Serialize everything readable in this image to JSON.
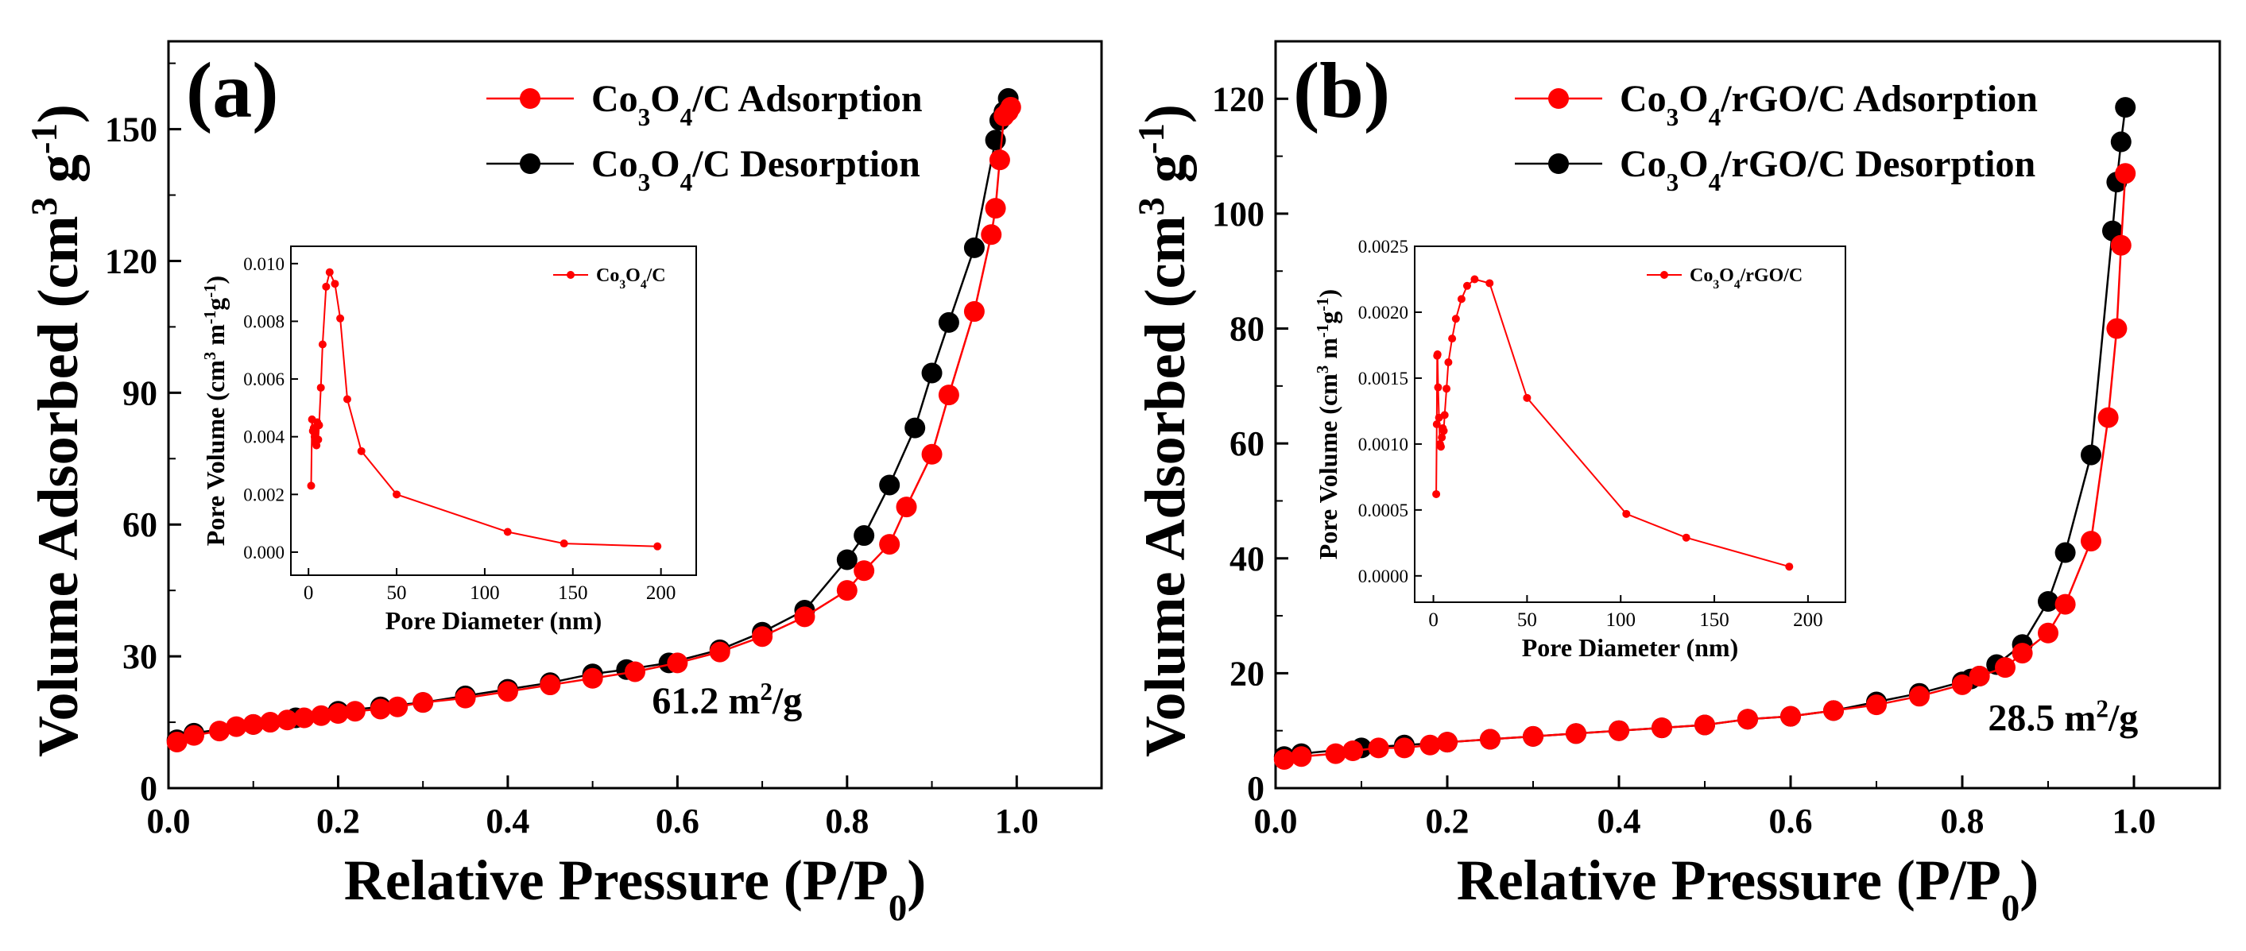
{
  "chart_data": [
    {
      "type": "scatter",
      "panel_label": "(a)",
      "ylabel": "Volume Adsorbed (cm³ g⁻¹)",
      "xlabel": "Relative Pressure (P/P₀)",
      "xlim": [
        0,
        1.1
      ],
      "ylim": [
        0,
        170
      ],
      "xticks": [
        "0.0",
        "0.2",
        "0.4",
        "0.6",
        "0.8",
        "1.0"
      ],
      "xtick_values": [
        0,
        0.2,
        0.4,
        0.6,
        0.8,
        1.0
      ],
      "yticks": [
        "0",
        "30",
        "60",
        "90",
        "120",
        "150"
      ],
      "ytick_values": [
        0,
        30,
        60,
        90,
        120,
        150
      ],
      "annotation": "61.2 m²/g",
      "legend_position": "top-right",
      "series": [
        {
          "name": "Co₃O₄/C Adsorption",
          "color": "#ff0000",
          "x": [
            0.01,
            0.03,
            0.06,
            0.08,
            0.1,
            0.12,
            0.14,
            0.16,
            0.18,
            0.2,
            0.22,
            0.25,
            0.27,
            0.3,
            0.35,
            0.4,
            0.45,
            0.5,
            0.55,
            0.6,
            0.65,
            0.7,
            0.75,
            0.8,
            0.82,
            0.85,
            0.87,
            0.9,
            0.92,
            0.95,
            0.97,
            0.975,
            0.98,
            0.985,
            0.99,
            0.993
          ],
          "y": [
            10.5,
            12,
            13,
            14,
            14.5,
            15,
            15.5,
            16,
            16.5,
            17,
            17.5,
            18,
            18.5,
            19.5,
            20.5,
            22,
            23.5,
            25,
            26.5,
            28.5,
            31,
            34.5,
            39,
            45,
            49.5,
            55.5,
            64,
            76,
            89.5,
            108.5,
            126,
            132,
            143,
            153,
            154,
            155
          ]
        },
        {
          "name": "Co₃O₄/C Desorption",
          "color": "#000000",
          "x": [
            0.01,
            0.03,
            0.1,
            0.15,
            0.2,
            0.25,
            0.3,
            0.35,
            0.4,
            0.45,
            0.5,
            0.54,
            0.59,
            0.65,
            0.7,
            0.75,
            0.8,
            0.82,
            0.85,
            0.88,
            0.9,
            0.92,
            0.95,
            0.975,
            0.98,
            0.985,
            0.99
          ],
          "y": [
            11,
            12.5,
            14.5,
            16,
            17.5,
            18.5,
            19.5,
            21,
            22.5,
            24,
            26,
            27,
            28.5,
            31.5,
            35.5,
            40.5,
            52,
            57.5,
            69,
            82,
            94.5,
            106,
            123,
            147.5,
            152,
            154,
            157
          ]
        }
      ],
      "inset": {
        "xlabel": "Pore Diameter (nm)",
        "ylabel": "Pore Volume (cm³ m⁻¹g⁻¹)",
        "legend": "Co₃O₄/C",
        "xlim": [
          -10,
          220
        ],
        "ylim": [
          -0.0008,
          0.0106
        ],
        "xticks": [
          "0",
          "50",
          "100",
          "150",
          "200"
        ],
        "xtick_values": [
          0,
          50,
          100,
          150,
          200
        ],
        "yticks": [
          "0.000",
          "0.002",
          "0.004",
          "0.006",
          "0.008",
          "0.010"
        ],
        "ytick_values": [
          0,
          0.002,
          0.004,
          0.006,
          0.008,
          0.01
        ],
        "color": "#ff0000",
        "x": [
          1.5,
          2,
          2.5,
          3,
          3.5,
          4,
          4.5,
          5,
          5.5,
          6,
          7,
          8,
          10,
          12,
          15,
          18,
          22,
          30,
          50,
          113,
          145,
          198
        ],
        "y": [
          0.0023,
          0.0046,
          0.0042,
          0.0043,
          0.004,
          0.0038,
          0.0037,
          0.0045,
          0.0039,
          0.0044,
          0.0057,
          0.0072,
          0.0092,
          0.0097,
          0.0093,
          0.0081,
          0.0053,
          0.0035,
          0.002,
          0.0007,
          0.0003,
          0.0002
        ]
      }
    },
    {
      "type": "scatter",
      "panel_label": "(b)",
      "ylabel": "Volume Adsorbed (cm³ g⁻¹)",
      "xlabel": "Relative Pressure (P/P₀)",
      "xlim": [
        0,
        1.1
      ],
      "ylim": [
        0,
        130
      ],
      "xticks": [
        "0.0",
        "0.2",
        "0.4",
        "0.6",
        "0.8",
        "1.0"
      ],
      "xtick_values": [
        0,
        0.2,
        0.4,
        0.6,
        0.8,
        1.0
      ],
      "yticks": [
        "0",
        "20",
        "40",
        "60",
        "80",
        "100",
        "120"
      ],
      "ytick_values": [
        0,
        20,
        40,
        60,
        80,
        100,
        120
      ],
      "annotation": "28.5 m²/g",
      "legend_position": "top-right",
      "series": [
        {
          "name": "Co₃O₄/rGO/C Adsorption",
          "color": "#ff0000",
          "x": [
            0.01,
            0.03,
            0.07,
            0.09,
            0.12,
            0.15,
            0.18,
            0.2,
            0.25,
            0.3,
            0.35,
            0.4,
            0.45,
            0.5,
            0.55,
            0.6,
            0.65,
            0.7,
            0.75,
            0.8,
            0.82,
            0.85,
            0.87,
            0.9,
            0.92,
            0.95,
            0.97,
            0.98,
            0.985,
            0.99
          ],
          "y": [
            5,
            5.5,
            6,
            6.5,
            7,
            7,
            7.5,
            8,
            8.5,
            9,
            9.5,
            10,
            10.5,
            11,
            12,
            12.5,
            13.5,
            14.5,
            16,
            18,
            19.5,
            21,
            23.5,
            27,
            32,
            43,
            64.5,
            80,
            94.5,
            107
          ]
        },
        {
          "name": "Co₃O₄/rGO/C Desorption",
          "color": "#000000",
          "x": [
            0.01,
            0.03,
            0.1,
            0.15,
            0.2,
            0.25,
            0.3,
            0.35,
            0.4,
            0.45,
            0.5,
            0.55,
            0.6,
            0.65,
            0.7,
            0.75,
            0.8,
            0.81,
            0.82,
            0.84,
            0.87,
            0.9,
            0.92,
            0.95,
            0.975,
            0.98,
            0.985,
            0.99
          ],
          "y": [
            5.5,
            6,
            7,
            7.5,
            8,
            8.5,
            9,
            9.5,
            10,
            10.5,
            11,
            12,
            12.5,
            13.5,
            15,
            16.5,
            18.5,
            19,
            19.5,
            21.5,
            25,
            32.5,
            41,
            58,
            97,
            105.5,
            112.5,
            118.5
          ]
        }
      ],
      "inset": {
        "xlabel": "Pore Diameter (nm)",
        "ylabel": "Pore Volume (cm³ m⁻¹g⁻¹)",
        "legend": "Co₃O₄/rGO/C",
        "xlim": [
          -10,
          220
        ],
        "ylim": [
          -0.0002,
          0.0025
        ],
        "xticks": [
          "0",
          "50",
          "100",
          "150",
          "200"
        ],
        "xtick_values": [
          0,
          50,
          100,
          150,
          200
        ],
        "yticks": [
          "0.0000",
          "0.0005",
          "0.0010",
          "0.0015",
          "0.0020",
          "0.0025"
        ],
        "ytick_values": [
          0,
          0.0005,
          0.001,
          0.0015,
          0.002,
          0.0025
        ],
        "color": "#ff0000",
        "x": [
          1.5,
          1.8,
          2,
          2.2,
          2.5,
          3,
          3.5,
          4,
          4.5,
          5,
          5.5,
          6,
          7,
          8,
          10,
          12,
          15,
          18,
          22,
          30,
          50,
          103,
          135,
          190
        ],
        "y": [
          0.00062,
          0.00115,
          0.00167,
          0.00168,
          0.00143,
          0.0012,
          0.001,
          0.00098,
          0.00105,
          0.00112,
          0.0011,
          0.00122,
          0.00142,
          0.00162,
          0.0018,
          0.00195,
          0.0021,
          0.0022,
          0.00225,
          0.00222,
          0.00135,
          0.00047,
          0.00029,
          7e-05
        ]
      }
    }
  ]
}
